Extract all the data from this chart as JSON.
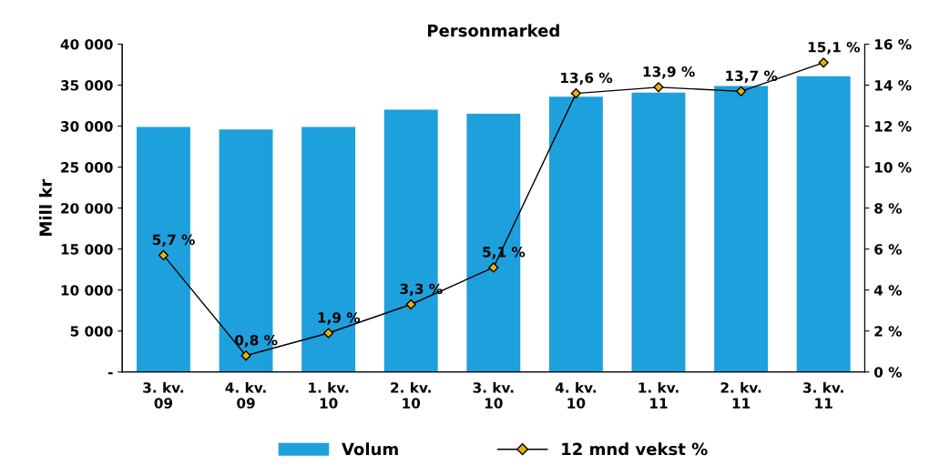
{
  "chart_data": {
    "type": "bar",
    "title": "Personmarked",
    "ylabel": "Mill kr",
    "categories": [
      "3. kv.\n09",
      "4. kv.\n09",
      "1. kv.\n10",
      "2. kv.\n10",
      "3. kv.\n10",
      "4. kv.\n10",
      "1. kv.\n11",
      "2. kv.\n11",
      "3. kv.\n11"
    ],
    "series": [
      {
        "name": "Volum",
        "color": "#1ea0dc",
        "values": [
          29900,
          29600,
          29900,
          32000,
          31500,
          33600,
          34100,
          34900,
          36100
        ]
      },
      {
        "name": "12 mnd vekst %",
        "type": "line",
        "axis": "y2",
        "color": "#000000",
        "marker": "diamond",
        "values": [
          5.7,
          0.8,
          1.9,
          3.3,
          5.1,
          13.6,
          13.9,
          13.7,
          15.1
        ],
        "value_labels": [
          "5,7 %",
          "0,8 %",
          "1,9 %",
          "3,3 %",
          "5,1 %",
          "13,6 %",
          "13,9 %",
          "13,7 %",
          "15,1 %"
        ]
      }
    ],
    "ylim": [
      0,
      40000
    ],
    "yticks": [
      {
        "value": 0,
        "label": "-"
      },
      {
        "value": 5000,
        "label": "5 000"
      },
      {
        "value": 10000,
        "label": "10 000"
      },
      {
        "value": 15000,
        "label": "15 000"
      },
      {
        "value": 20000,
        "label": "20 000"
      },
      {
        "value": 25000,
        "label": "25 000"
      },
      {
        "value": 30000,
        "label": "30 000"
      },
      {
        "value": 35000,
        "label": "35 000"
      },
      {
        "value": 40000,
        "label": "40 000"
      }
    ],
    "y2lim": [
      0,
      16
    ],
    "y2ticks": [
      {
        "value": 0,
        "label": "0 %"
      },
      {
        "value": 2,
        "label": "2 %"
      },
      {
        "value": 4,
        "label": "4 %"
      },
      {
        "value": 6,
        "label": "6 %"
      },
      {
        "value": 8,
        "label": "8 %"
      },
      {
        "value": 10,
        "label": "10 %"
      },
      {
        "value": 12,
        "label": "12 %"
      },
      {
        "value": 14,
        "label": "14 %"
      },
      {
        "value": 16,
        "label": "16 %"
      }
    ],
    "legend": "bottom",
    "grid": false
  }
}
